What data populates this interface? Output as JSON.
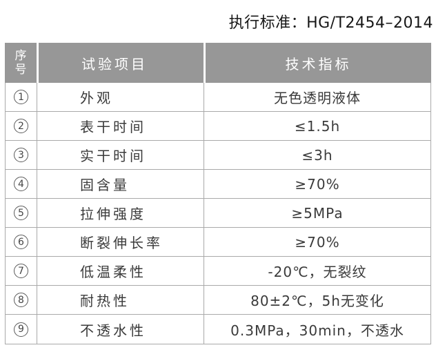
{
  "header": {
    "standard_label": "执行标准：HG/T2454–2014"
  },
  "table": {
    "columns": {
      "no": "序号",
      "item": "试验项目",
      "value": "技术指标"
    },
    "rows": [
      {
        "no": "1",
        "item": "外观",
        "value": "无色透明液体"
      },
      {
        "no": "2",
        "item": "表干时间",
        "value": "≤1.5h"
      },
      {
        "no": "3",
        "item": "实干时间",
        "value": "≤3h"
      },
      {
        "no": "4",
        "item": "固含量",
        "value": "≥70%"
      },
      {
        "no": "5",
        "item": "拉伸强度",
        "value": "≥5MPa"
      },
      {
        "no": "6",
        "item": "断裂伸长率",
        "value": "≥70%"
      },
      {
        "no": "7",
        "item": "低温柔性",
        "value": "-20℃，无裂纹"
      },
      {
        "no": "8",
        "item": "耐热性",
        "value": "80±2℃，5h无变化"
      },
      {
        "no": "9",
        "item": "不透水性",
        "value": "0.3MPa，30min，不透水"
      }
    ],
    "colors": {
      "header_bg": "#979797",
      "header_text": "#ffffff",
      "border": "#a9a9a9",
      "body_text": "#3a3a3a"
    }
  }
}
